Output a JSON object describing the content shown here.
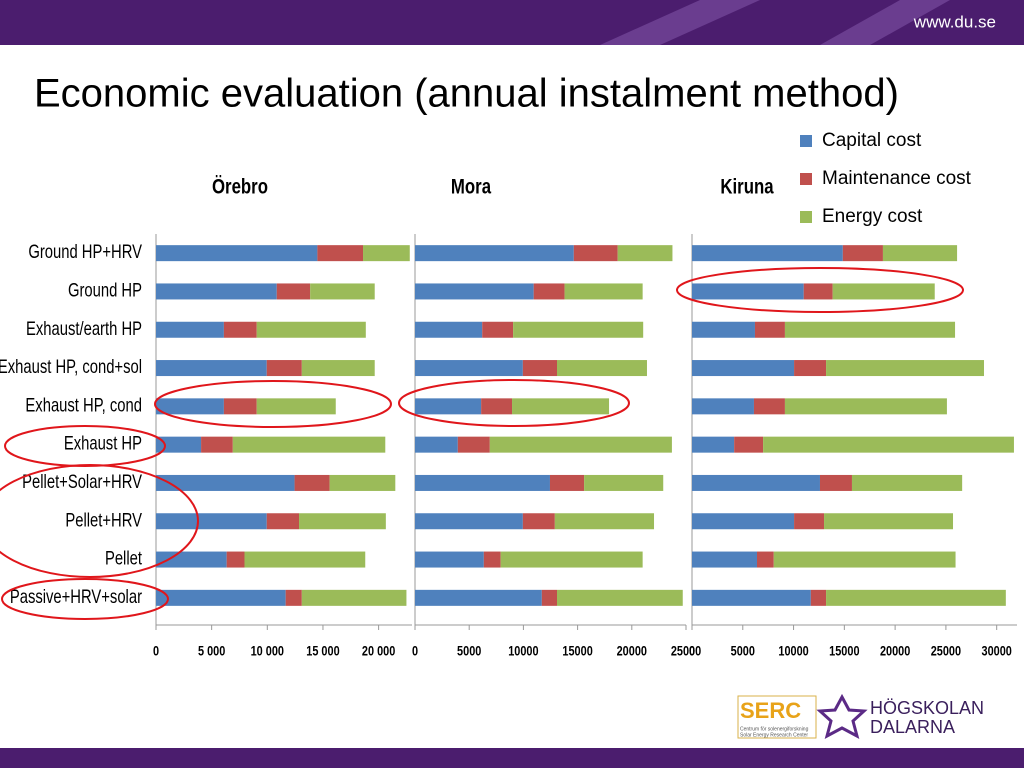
{
  "header": {
    "url": "www.du.se",
    "title": "Economic evaluation (annual instalment method)"
  },
  "logos": {
    "serc": "SERC",
    "serc_sub1": "Centrum för solenergiforskning",
    "serc_sub2": "Solar Energy Research Center",
    "school1": "HÖGSKOLAN",
    "school2": "DALARNA"
  },
  "chart_data": [
    {
      "type": "bar",
      "orientation": "horizontal",
      "stacked": true,
      "title": "Örebro",
      "categories": [
        "Ground HP+HRV",
        "Ground HP",
        "Exhaust/earth HP",
        "Exhaust HP, cond+sol",
        "Exhaust HP, cond",
        "Exhaust HP",
        "Pellet+Solar+HRV",
        "Pellet+HRV",
        "Pellet",
        "Passive+HRV+solar"
      ],
      "series": [
        {
          "color": "#4f81bd",
          "values": [
            14500,
            10850,
            6100,
            9950,
            6100,
            4050,
            12450,
            9950,
            6350,
            11650
          ]
        },
        {
          "color": "#c0504d",
          "values": [
            4100,
            3000,
            2950,
            3150,
            2950,
            2850,
            3150,
            2900,
            1600,
            1450
          ]
        },
        {
          "color": "#9bbb59",
          "values": [
            4200,
            5800,
            9800,
            6550,
            7100,
            13700,
            5900,
            7800,
            10850,
            9400
          ]
        }
      ],
      "xlim": [
        0,
        23000
      ],
      "xticks": [
        0,
        {
          "value": 5000,
          "label": "5 000"
        },
        {
          "value": 10000,
          "label": "10 000"
        },
        {
          "value": 15000,
          "label": "15 000"
        },
        {
          "value": 20000,
          "label": "20 000"
        }
      ]
    },
    {
      "type": "bar",
      "orientation": "horizontal",
      "stacked": true,
      "title": "Mora",
      "series": [
        {
          "color": "#4f81bd",
          "values": [
            14650,
            10950,
            6200,
            9950,
            6100,
            3950,
            12450,
            9950,
            6350,
            11700
          ]
        },
        {
          "color": "#c0504d",
          "values": [
            4050,
            2850,
            2850,
            3150,
            2850,
            2950,
            3150,
            2950,
            1550,
            1400
          ]
        },
        {
          "color": "#9bbb59",
          "values": [
            5050,
            7200,
            12000,
            8300,
            8950,
            16800,
            7300,
            9150,
            13100,
            11600
          ]
        }
      ],
      "xlim": [
        0,
        25000
      ],
      "xticks": [
        0,
        5000,
        10000,
        15000,
        20000,
        25000
      ]
    },
    {
      "type": "bar",
      "orientation": "horizontal",
      "stacked": true,
      "title": "Kiruna",
      "legend": "top-right",
      "series": [
        {
          "name": "Capital cost",
          "color": "#4f81bd",
          "values": [
            14850,
            11000,
            6200,
            10050,
            6100,
            4150,
            12600,
            10050,
            6400,
            11700
          ]
        },
        {
          "name": "Maintenance cost",
          "color": "#c0504d",
          "values": [
            3950,
            2850,
            2950,
            3150,
            3050,
            2850,
            3150,
            2950,
            1650,
            1500
          ]
        },
        {
          "name": "Energy cost",
          "color": "#9bbb59",
          "values": [
            7300,
            10050,
            16750,
            15550,
            15950,
            24700,
            10850,
            12700,
            17900,
            17700
          ]
        }
      ],
      "xlim": [
        0,
        32000
      ],
      "xticks": [
        0,
        5000,
        10000,
        15000,
        20000,
        25000,
        30000
      ]
    }
  ]
}
